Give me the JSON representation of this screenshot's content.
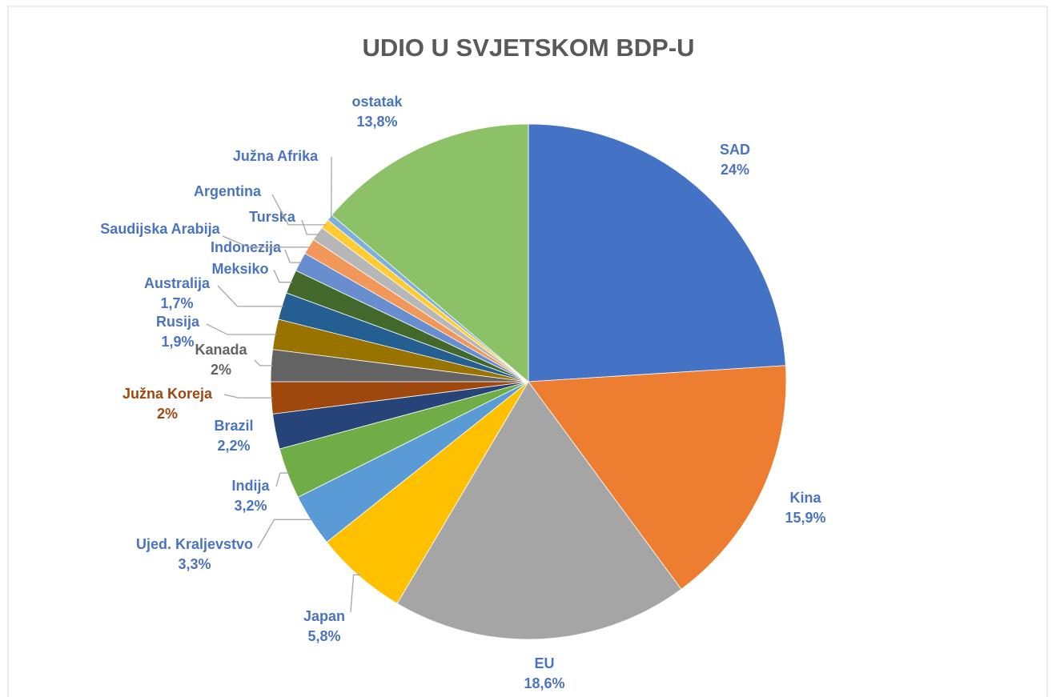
{
  "chart_data": {
    "type": "pie",
    "title": "UDIO U SVJETSKOM BDP-U",
    "categories": [
      "SAD",
      "Kina",
      "EU",
      "Japan",
      "Ujed. Kraljevstvo",
      "Indija",
      "Brazil",
      "Južna Koreja",
      "Kanada",
      "Rusija",
      "Australija",
      "Meksiko",
      "Indonezija",
      "Saudijska Arabija",
      "Turska",
      "Argentina",
      "Južna Afrika",
      "ostatak"
    ],
    "values": [
      24,
      15.9,
      18.6,
      5.8,
      3.3,
      3.2,
      2.2,
      2,
      2,
      1.9,
      1.7,
      1.5,
      1.2,
      1.0,
      0.9,
      0.6,
      0.4,
      13.8
    ],
    "value_labels": [
      "24%",
      "15,9%",
      "18,6%",
      "5,8%",
      "3,3%",
      "3,2%",
      "2,2%",
      "2%",
      "2%",
      "1,9%",
      "1,7%",
      null,
      null,
      null,
      null,
      null,
      null,
      "13,8%"
    ],
    "colors": [
      "#4472c4",
      "#ed7d31",
      "#a5a5a5",
      "#ffc000",
      "#5b9bd5",
      "#70ad47",
      "#264478",
      "#9e480e",
      "#636363",
      "#997300",
      "#255e91",
      "#43682b",
      "#698ed0",
      "#f1975a",
      "#b7b7b7",
      "#ffcd33",
      "#7cafdd",
      "#8cc168"
    ],
    "label_colors": [
      "#4a73c0",
      "#4a73c0",
      "#4a73c0",
      "#4a73c0",
      "#4a73c0",
      "#4a73c0",
      "#4a73c0",
      "#9e480e",
      "#636363",
      "#4a73c0",
      "#4a73c0",
      "#4a73c0",
      "#4a73c0",
      "#4a73c0",
      "#4a73c0",
      "#4a73c0",
      "#4a73c0",
      "#4a73c0"
    ]
  }
}
